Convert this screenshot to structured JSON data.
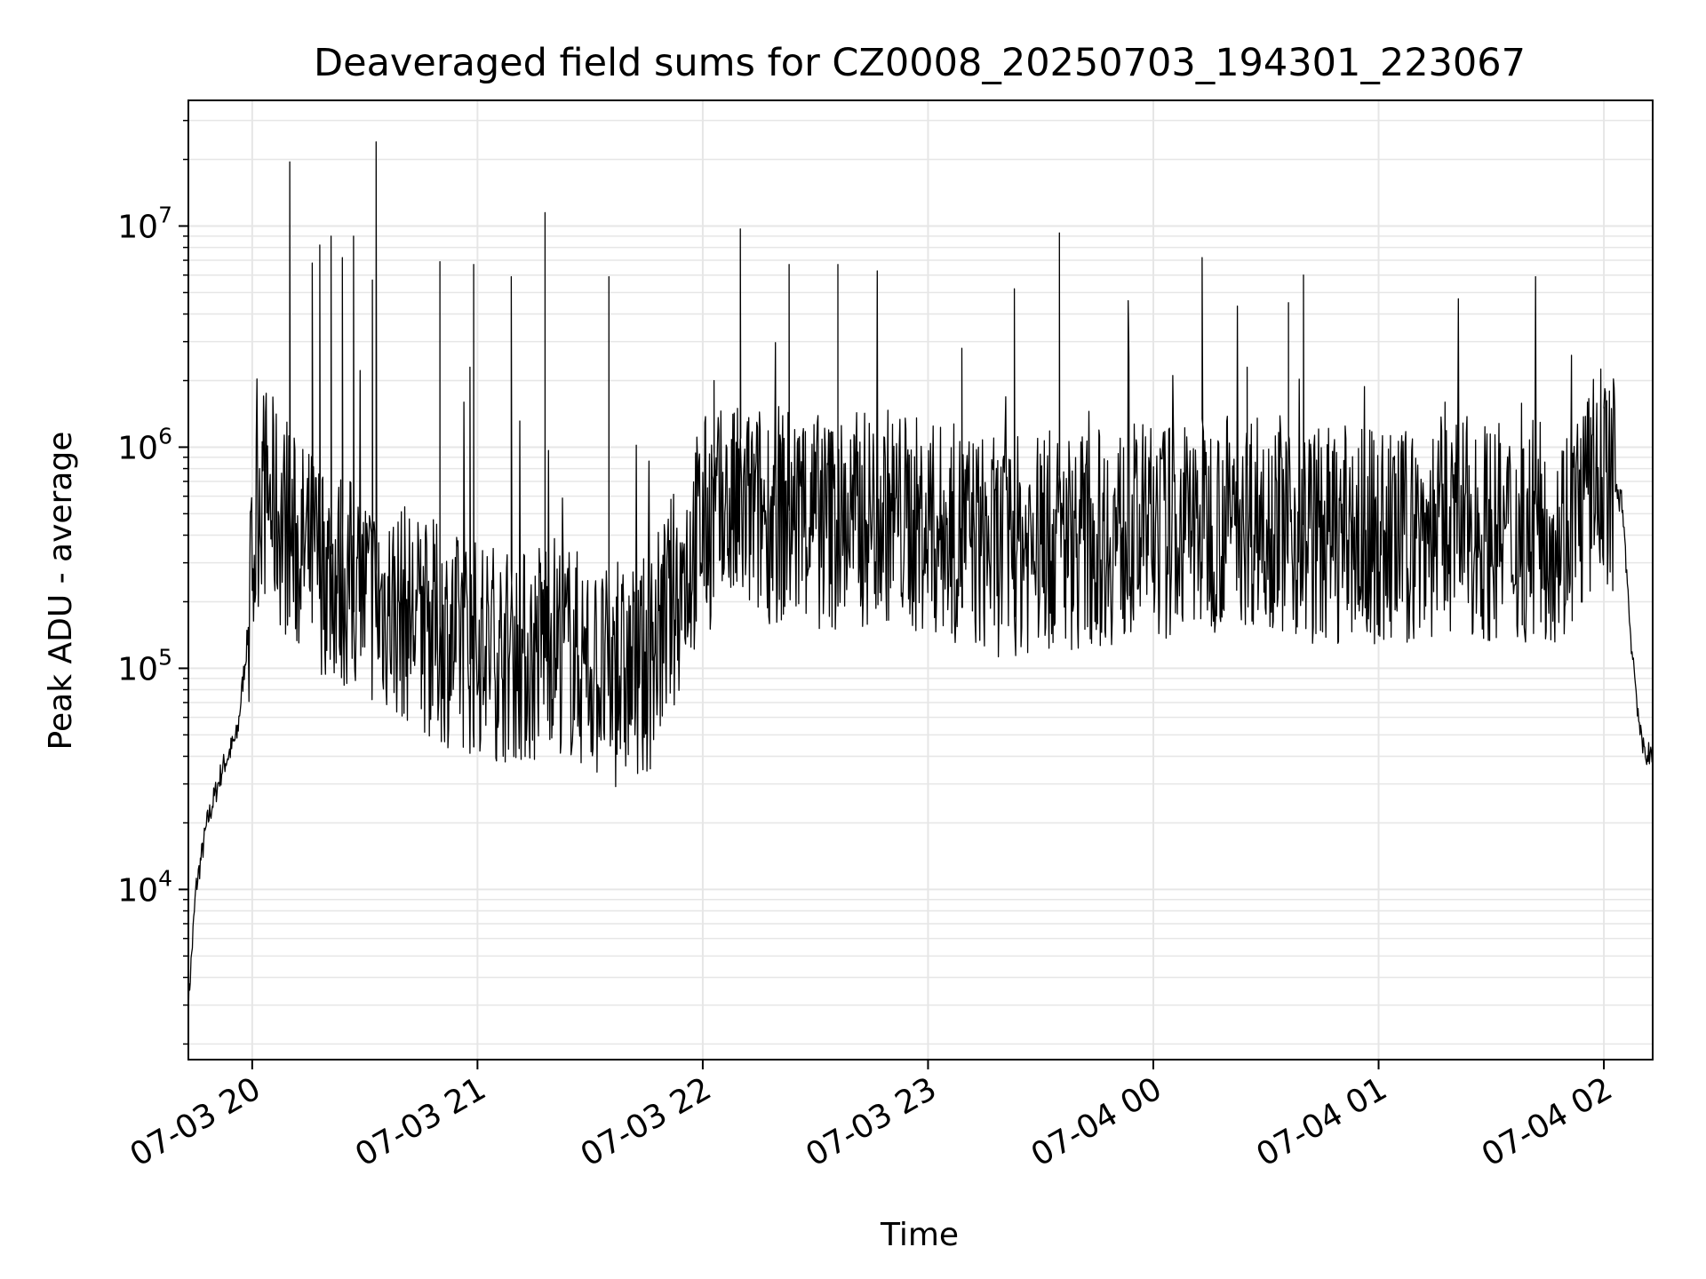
{
  "chart_data": {
    "type": "line",
    "title": "Deaveraged field sums for CZ0008_20250703_194301_223067",
    "xlabel": "Time",
    "ylabel": "Peak ADU - average",
    "y_scale": "log",
    "xlim": [
      "2025-07-03 19:43",
      "2025-07-04 02:13"
    ],
    "ylim": [
      1700,
      37000000
    ],
    "x_tick_labels": [
      "07-03 20",
      "07-03 21",
      "07-03 22",
      "07-03 23",
      "07-04 00",
      "07-04 01",
      "07-04 02"
    ],
    "x_ticks": [
      "2025-07-03 20:00",
      "2025-07-03 21:00",
      "2025-07-03 22:00",
      "2025-07-03 23:00",
      "2025-07-04 00:00",
      "2025-07-04 01:00",
      "2025-07-04 02:00"
    ],
    "y_ticks": [
      10000,
      100000,
      1000000,
      10000000
    ],
    "y_tick_labels": [
      {
        "base": "10",
        "exp": "4"
      },
      {
        "base": "10",
        "exp": "5"
      },
      {
        "base": "10",
        "exp": "6"
      },
      {
        "base": "10",
        "exp": "7"
      }
    ],
    "grid": true,
    "line_color": "#000000",
    "grid_color": "#e6e6e6",
    "series": [
      {
        "x": [
          "2025-07-03 19:43",
          "2025-07-03 19:45",
          "2025-07-03 19:48",
          "2025-07-03 19:52",
          "2025-07-03 19:56",
          "2025-07-03 19:59",
          "2025-07-03 20:02",
          "2025-07-03 20:08",
          "2025-07-03 20:12",
          "2025-07-03 20:18",
          "2025-07-03 20:24",
          "2025-07-03 20:30",
          "2025-07-03 20:33",
          "2025-07-03 20:40",
          "2025-07-03 20:48",
          "2025-07-03 20:55",
          "2025-07-03 21:05",
          "2025-07-03 21:15",
          "2025-07-03 21:18",
          "2025-07-03 21:30",
          "2025-07-03 21:35",
          "2025-07-03 21:38",
          "2025-07-03 21:45",
          "2025-07-03 21:52",
          "2025-07-03 22:00",
          "2025-07-03 22:10",
          "2025-07-03 22:20",
          "2025-07-03 22:36",
          "2025-07-03 22:50",
          "2025-07-03 23:00",
          "2025-07-03 23:10",
          "2025-07-03 23:18",
          "2025-07-03 23:35",
          "2025-07-03 23:50",
          "2025-07-04 00:05",
          "2025-07-04 00:13",
          "2025-07-04 00:30",
          "2025-07-04 00:40",
          "2025-07-04 00:50",
          "2025-07-04 01:05",
          "2025-07-04 01:20",
          "2025-07-04 01:35",
          "2025-07-04 01:50",
          "2025-07-04 02:00",
          "2025-07-04 02:05",
          "2025-07-04 02:07",
          "2025-07-04 02:10",
          "2025-07-04 02:13"
        ],
        "y": [
          3000,
          10000,
          20000,
          35000,
          50000,
          150000,
          700000,
          450000,
          350000,
          300000,
          250000,
          220000,
          200000,
          180000,
          150000,
          130000,
          120000,
          110000,
          150000,
          100000,
          90000,
          90000,
          100000,
          200000,
          450000,
          500000,
          500000,
          450000,
          500000,
          420000,
          400000,
          350000,
          380000,
          400000,
          420000,
          450000,
          500000,
          400000,
          400000,
          380000,
          450000,
          400000,
          420000,
          800000,
          550000,
          150000,
          45000,
          38000
        ]
      }
    ],
    "spikes": [
      {
        "x": "2025-07-03 20:10",
        "y": 19500000
      },
      {
        "x": "2025-07-03 20:16",
        "y": 6800000
      },
      {
        "x": "2025-07-03 20:18",
        "y": 8200000
      },
      {
        "x": "2025-07-03 20:21",
        "y": 9000000
      },
      {
        "x": "2025-07-03 20:24",
        "y": 7200000
      },
      {
        "x": "2025-07-03 20:27",
        "y": 9000000
      },
      {
        "x": "2025-07-03 20:32",
        "y": 5700000
      },
      {
        "x": "2025-07-03 20:33",
        "y": 24000000
      },
      {
        "x": "2025-07-03 20:50",
        "y": 6900000
      },
      {
        "x": "2025-07-03 20:58",
        "y": 2300000
      },
      {
        "x": "2025-07-03 20:59",
        "y": 6700000
      },
      {
        "x": "2025-07-03 21:09",
        "y": 5900000
      },
      {
        "x": "2025-07-03 21:18",
        "y": 11500000
      },
      {
        "x": "2025-07-03 21:35",
        "y": 5900000
      },
      {
        "x": "2025-07-03 22:03",
        "y": 2000000
      },
      {
        "x": "2025-07-03 22:10",
        "y": 9700000
      },
      {
        "x": "2025-07-03 22:23",
        "y": 6700000
      },
      {
        "x": "2025-07-03 22:36",
        "y": 6700000
      },
      {
        "x": "2025-07-03 23:09",
        "y": 2800000
      },
      {
        "x": "2025-07-03 23:23",
        "y": 5200000
      },
      {
        "x": "2025-07-03 23:35",
        "y": 9300000
      },
      {
        "x": "2025-07-04 00:13",
        "y": 7200000
      },
      {
        "x": "2025-07-04 00:25",
        "y": 2300000
      },
      {
        "x": "2025-07-04 00:36",
        "y": 4500000
      },
      {
        "x": "2025-07-04 00:40",
        "y": 6000000
      },
      {
        "x": "2025-07-04 02:00",
        "y": 1500000
      }
    ]
  }
}
